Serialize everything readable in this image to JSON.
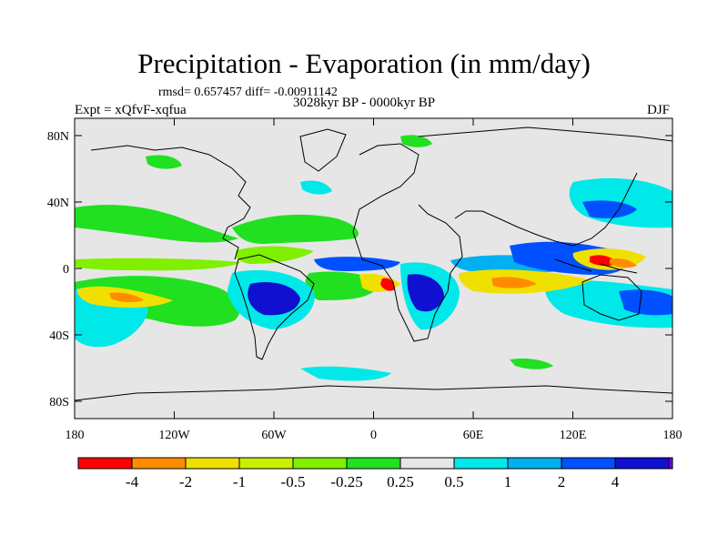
{
  "header": {
    "title": "Precipitation - Evaporation (in mm/day)",
    "stats": "rmsd= 0.657457  diff= -0.00911142",
    "period": "3028kyr BP - 0000kyr BP",
    "experiment": "Expt = xQfvF-xqfua",
    "season": "DJF"
  },
  "map": {
    "land_fill": "#e6e6e6",
    "x_ticks": [
      "180",
      "120W",
      "60W",
      "0",
      "60E",
      "120E",
      "180"
    ],
    "y_ticks": [
      "80N",
      "40N",
      "0",
      "40S",
      "80S"
    ]
  },
  "colorbar": {
    "colors": [
      "#ff0000",
      "#ff8c00",
      "#f0e000",
      "#c8f000",
      "#80f000",
      "#20e020",
      "#e6e6e6",
      "#00e8e8",
      "#00b0f0",
      "#0050ff",
      "#1010d0",
      "#7000f0"
    ],
    "labels": [
      "-4",
      "-2",
      "-1",
      "-0.5",
      "-0.25",
      "0.25",
      "0.5",
      "1",
      "2",
      "4"
    ]
  }
}
